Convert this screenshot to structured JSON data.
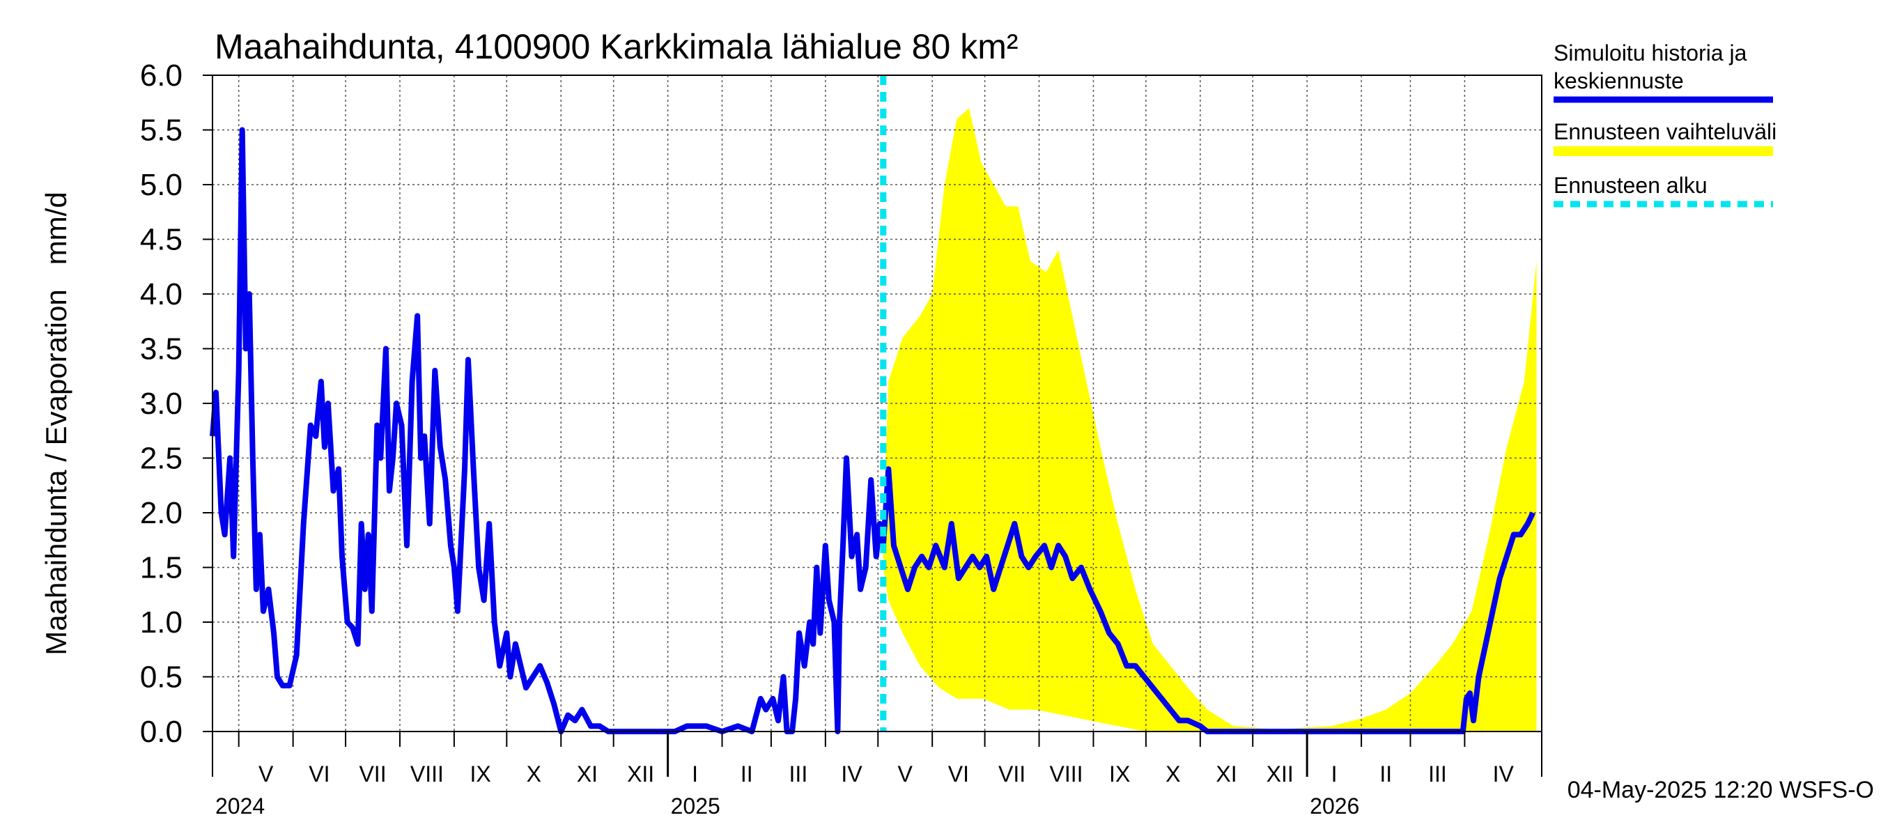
{
  "chart_data": {
    "type": "line",
    "title": "Maahaihdunta, 4100900 Karkkimala lähialue 80 km²",
    "ylabel": "Maahaihdunta / Evaporation   mm/d",
    "ylim": [
      0.0,
      6.0
    ],
    "yticks": [
      "0.0",
      "0.5",
      "1.0",
      "1.5",
      "2.0",
      "2.5",
      "3.0",
      "3.5",
      "4.0",
      "4.5",
      "5.0",
      "5.5",
      "6.0"
    ],
    "xlim": [
      "2024-04-16",
      "2026-05-15"
    ],
    "grid": true,
    "legend_position": "right",
    "month_labels": [
      {
        "label": "V",
        "start": "2024-05-01"
      },
      {
        "label": "VI",
        "start": "2024-06-01"
      },
      {
        "label": "VII",
        "start": "2024-07-01"
      },
      {
        "label": "VIII",
        "start": "2024-08-01"
      },
      {
        "label": "IX",
        "start": "2024-09-01"
      },
      {
        "label": "X",
        "start": "2024-10-01"
      },
      {
        "label": "XI",
        "start": "2024-11-01"
      },
      {
        "label": "XII",
        "start": "2024-12-01"
      },
      {
        "label": "I",
        "start": "2025-01-01"
      },
      {
        "label": "II",
        "start": "2025-02-01"
      },
      {
        "label": "III",
        "start": "2025-03-01"
      },
      {
        "label": "IV",
        "start": "2025-04-01"
      },
      {
        "label": "V",
        "start": "2025-05-01"
      },
      {
        "label": "VI",
        "start": "2025-06-01"
      },
      {
        "label": "VII",
        "start": "2025-07-01"
      },
      {
        "label": "VIII",
        "start": "2025-08-01"
      },
      {
        "label": "IX",
        "start": "2025-09-01"
      },
      {
        "label": "X",
        "start": "2025-10-01"
      },
      {
        "label": "XI",
        "start": "2025-11-01"
      },
      {
        "label": "XII",
        "start": "2025-12-01"
      },
      {
        "label": "I",
        "start": "2026-01-01"
      },
      {
        "label": "II",
        "start": "2026-02-01"
      },
      {
        "label": "III",
        "start": "2026-03-01"
      },
      {
        "label": "IV",
        "start": "2026-04-01"
      }
    ],
    "year_labels": [
      {
        "label": "2024",
        "date": "2024-05-01"
      },
      {
        "label": "2025",
        "date": "2025-01-01"
      },
      {
        "label": "2026",
        "date": "2026-01-01"
      }
    ],
    "forecast_start": "2025-05-04",
    "series": [
      {
        "name": "Simuloitu historia ja keskiennuste",
        "color": "#0000ee",
        "points": [
          [
            "2024-04-16",
            2.7
          ],
          [
            "2024-04-18",
            3.1
          ],
          [
            "2024-04-21",
            2.0
          ],
          [
            "2024-04-23",
            1.8
          ],
          [
            "2024-04-26",
            2.5
          ],
          [
            "2024-04-28",
            1.6
          ],
          [
            "2024-05-01",
            3.3
          ],
          [
            "2024-05-03",
            5.5
          ],
          [
            "2024-05-05",
            3.5
          ],
          [
            "2024-05-07",
            4.0
          ],
          [
            "2024-05-09",
            2.5
          ],
          [
            "2024-05-11",
            1.3
          ],
          [
            "2024-05-13",
            1.8
          ],
          [
            "2024-05-15",
            1.1
          ],
          [
            "2024-05-18",
            1.3
          ],
          [
            "2024-05-21",
            0.9
          ],
          [
            "2024-05-23",
            0.5
          ],
          [
            "2024-05-26",
            0.42
          ],
          [
            "2024-05-30",
            0.42
          ],
          [
            "2024-06-03",
            0.7
          ],
          [
            "2024-06-07",
            1.9
          ],
          [
            "2024-06-11",
            2.8
          ],
          [
            "2024-06-14",
            2.7
          ],
          [
            "2024-06-17",
            3.2
          ],
          [
            "2024-06-19",
            2.6
          ],
          [
            "2024-06-21",
            3.0
          ],
          [
            "2024-06-24",
            2.2
          ],
          [
            "2024-06-27",
            2.4
          ],
          [
            "2024-06-29",
            1.6
          ],
          [
            "2024-07-02",
            1.0
          ],
          [
            "2024-07-05",
            0.95
          ],
          [
            "2024-07-08",
            0.8
          ],
          [
            "2024-07-10",
            1.9
          ],
          [
            "2024-07-12",
            1.3
          ],
          [
            "2024-07-14",
            1.8
          ],
          [
            "2024-07-16",
            1.1
          ],
          [
            "2024-07-19",
            2.8
          ],
          [
            "2024-07-21",
            2.5
          ],
          [
            "2024-07-24",
            3.5
          ],
          [
            "2024-07-26",
            2.2
          ],
          [
            "2024-07-28",
            2.5
          ],
          [
            "2024-07-30",
            3.0
          ],
          [
            "2024-08-02",
            2.8
          ],
          [
            "2024-08-05",
            1.7
          ],
          [
            "2024-08-08",
            3.2
          ],
          [
            "2024-08-11",
            3.8
          ],
          [
            "2024-08-13",
            2.5
          ],
          [
            "2024-08-15",
            2.7
          ],
          [
            "2024-08-18",
            1.9
          ],
          [
            "2024-08-21",
            3.3
          ],
          [
            "2024-08-24",
            2.6
          ],
          [
            "2024-08-27",
            2.3
          ],
          [
            "2024-08-30",
            1.7
          ],
          [
            "2024-09-01",
            1.5
          ],
          [
            "2024-09-03",
            1.1
          ],
          [
            "2024-09-07",
            2.4
          ],
          [
            "2024-09-09",
            3.4
          ],
          [
            "2024-09-12",
            2.4
          ],
          [
            "2024-09-15",
            1.5
          ],
          [
            "2024-09-18",
            1.2
          ],
          [
            "2024-09-21",
            1.9
          ],
          [
            "2024-09-24",
            1.0
          ],
          [
            "2024-09-27",
            0.6
          ],
          [
            "2024-10-01",
            0.9
          ],
          [
            "2024-10-03",
            0.5
          ],
          [
            "2024-10-06",
            0.8
          ],
          [
            "2024-10-09",
            0.6
          ],
          [
            "2024-10-12",
            0.4
          ],
          [
            "2024-10-16",
            0.5
          ],
          [
            "2024-10-20",
            0.6
          ],
          [
            "2024-10-24",
            0.45
          ],
          [
            "2024-10-28",
            0.25
          ],
          [
            "2024-11-01",
            0.0
          ],
          [
            "2024-11-05",
            0.15
          ],
          [
            "2024-11-09",
            0.1
          ],
          [
            "2024-11-13",
            0.2
          ],
          [
            "2024-11-18",
            0.05
          ],
          [
            "2024-11-23",
            0.05
          ],
          [
            "2024-11-28",
            0.0
          ],
          [
            "2024-12-10",
            0.0
          ],
          [
            "2024-12-20",
            0.0
          ],
          [
            "2025-01-05",
            0.0
          ],
          [
            "2025-01-12",
            0.05
          ],
          [
            "2025-01-18",
            0.05
          ],
          [
            "2025-01-23",
            0.05
          ],
          [
            "2025-02-01",
            0.0
          ],
          [
            "2025-02-10",
            0.05
          ],
          [
            "2025-02-18",
            0.0
          ],
          [
            "2025-02-23",
            0.3
          ],
          [
            "2025-02-26",
            0.2
          ],
          [
            "2025-03-02",
            0.3
          ],
          [
            "2025-03-05",
            0.1
          ],
          [
            "2025-03-08",
            0.5
          ],
          [
            "2025-03-10",
            0.0
          ],
          [
            "2025-03-13",
            0.0
          ],
          [
            "2025-03-15",
            0.3
          ],
          [
            "2025-03-17",
            0.9
          ],
          [
            "2025-03-20",
            0.6
          ],
          [
            "2025-03-23",
            1.0
          ],
          [
            "2025-03-25",
            0.8
          ],
          [
            "2025-03-27",
            1.5
          ],
          [
            "2025-03-29",
            0.9
          ],
          [
            "2025-04-01",
            1.7
          ],
          [
            "2025-04-03",
            1.2
          ],
          [
            "2025-04-06",
            1.0
          ],
          [
            "2025-04-08",
            0.0
          ],
          [
            "2025-04-09",
            1.0
          ],
          [
            "2025-04-11",
            1.7
          ],
          [
            "2025-04-13",
            2.5
          ],
          [
            "2025-04-16",
            1.6
          ],
          [
            "2025-04-19",
            1.8
          ],
          [
            "2025-04-21",
            1.3
          ],
          [
            "2025-04-24",
            1.5
          ],
          [
            "2025-04-27",
            2.3
          ],
          [
            "2025-04-30",
            1.6
          ],
          [
            "2025-05-02",
            1.9
          ],
          [
            "2025-05-04",
            1.7
          ],
          [
            "2025-05-07",
            2.4
          ],
          [
            "2025-05-10",
            1.7
          ],
          [
            "2025-05-14",
            1.5
          ],
          [
            "2025-05-18",
            1.3
          ],
          [
            "2025-05-22",
            1.5
          ],
          [
            "2025-05-26",
            1.6
          ],
          [
            "2025-05-30",
            1.5
          ],
          [
            "2025-06-03",
            1.7
          ],
          [
            "2025-06-08",
            1.5
          ],
          [
            "2025-06-12",
            1.9
          ],
          [
            "2025-06-16",
            1.4
          ],
          [
            "2025-06-20",
            1.5
          ],
          [
            "2025-06-24",
            1.6
          ],
          [
            "2025-06-28",
            1.5
          ],
          [
            "2025-07-02",
            1.6
          ],
          [
            "2025-07-06",
            1.3
          ],
          [
            "2025-07-10",
            1.5
          ],
          [
            "2025-07-14",
            1.7
          ],
          [
            "2025-07-18",
            1.9
          ],
          [
            "2025-07-22",
            1.6
          ],
          [
            "2025-07-26",
            1.5
          ],
          [
            "2025-07-30",
            1.6
          ],
          [
            "2025-08-04",
            1.7
          ],
          [
            "2025-08-08",
            1.5
          ],
          [
            "2025-08-12",
            1.7
          ],
          [
            "2025-08-16",
            1.6
          ],
          [
            "2025-08-20",
            1.4
          ],
          [
            "2025-08-25",
            1.5
          ],
          [
            "2025-08-30",
            1.3
          ],
          [
            "2025-09-05",
            1.1
          ],
          [
            "2025-09-10",
            0.9
          ],
          [
            "2025-09-15",
            0.8
          ],
          [
            "2025-09-20",
            0.6
          ],
          [
            "2025-09-25",
            0.6
          ],
          [
            "2025-09-30",
            0.5
          ],
          [
            "2025-10-05",
            0.4
          ],
          [
            "2025-10-10",
            0.3
          ],
          [
            "2025-10-15",
            0.2
          ],
          [
            "2025-10-20",
            0.1
          ],
          [
            "2025-10-25",
            0.1
          ],
          [
            "2025-11-01",
            0.05
          ],
          [
            "2025-11-05",
            0.0
          ],
          [
            "2025-12-01",
            0.0
          ],
          [
            "2026-01-01",
            0.0
          ],
          [
            "2026-02-01",
            0.0
          ],
          [
            "2026-03-01",
            0.0
          ],
          [
            "2026-03-31",
            0.0
          ],
          [
            "2026-04-02",
            0.3
          ],
          [
            "2026-04-04",
            0.35
          ],
          [
            "2026-04-06",
            0.1
          ],
          [
            "2026-04-09",
            0.5
          ],
          [
            "2026-04-13",
            0.8
          ],
          [
            "2026-04-17",
            1.1
          ],
          [
            "2026-04-21",
            1.4
          ],
          [
            "2026-04-25",
            1.6
          ],
          [
            "2026-04-29",
            1.8
          ],
          [
            "2026-05-03",
            1.8
          ],
          [
            "2026-05-07",
            1.9
          ],
          [
            "2026-05-10",
            2.0
          ]
        ]
      }
    ],
    "band": {
      "name": "Ennusteen vaihteluväli",
      "color": "#ffff00",
      "upper": [
        [
          "2025-05-04",
          1.8
        ],
        [
          "2025-05-07",
          3.2
        ],
        [
          "2025-05-15",
          3.6
        ],
        [
          "2025-05-25",
          3.8
        ],
        [
          "2025-06-01",
          4.0
        ],
        [
          "2025-06-08",
          5.0
        ],
        [
          "2025-06-15",
          5.6
        ],
        [
          "2025-06-22",
          5.7
        ],
        [
          "2025-06-29",
          5.2
        ],
        [
          "2025-07-06",
          5.0
        ],
        [
          "2025-07-13",
          4.8
        ],
        [
          "2025-07-20",
          4.8
        ],
        [
          "2025-07-27",
          4.3
        ],
        [
          "2025-08-05",
          4.2
        ],
        [
          "2025-08-12",
          4.4
        ],
        [
          "2025-08-20",
          3.8
        ],
        [
          "2025-08-28",
          3.2
        ],
        [
          "2025-09-05",
          2.6
        ],
        [
          "2025-09-15",
          1.9
        ],
        [
          "2025-09-25",
          1.3
        ],
        [
          "2025-10-05",
          0.8
        ],
        [
          "2025-10-15",
          0.6
        ],
        [
          "2025-10-25",
          0.4
        ],
        [
          "2025-11-05",
          0.2
        ],
        [
          "2025-11-20",
          0.05
        ],
        [
          "2025-12-15",
          0.02
        ],
        [
          "2026-01-15",
          0.05
        ],
        [
          "2026-02-01",
          0.12
        ],
        [
          "2026-02-15",
          0.2
        ],
        [
          "2026-03-01",
          0.35
        ],
        [
          "2026-03-15",
          0.6
        ],
        [
          "2026-03-25",
          0.8
        ],
        [
          "2026-04-05",
          1.1
        ],
        [
          "2026-04-15",
          1.8
        ],
        [
          "2026-04-25",
          2.6
        ],
        [
          "2026-05-05",
          3.2
        ],
        [
          "2026-05-12",
          4.3
        ]
      ],
      "lower": [
        [
          "2025-05-04",
          1.5
        ],
        [
          "2025-05-07",
          1.2
        ],
        [
          "2025-05-15",
          0.9
        ],
        [
          "2025-05-25",
          0.6
        ],
        [
          "2025-06-05",
          0.4
        ],
        [
          "2025-06-15",
          0.3
        ],
        [
          "2025-06-30",
          0.3
        ],
        [
          "2025-07-15",
          0.2
        ],
        [
          "2025-07-30",
          0.2
        ],
        [
          "2025-08-15",
          0.15
        ],
        [
          "2025-08-30",
          0.1
        ],
        [
          "2025-09-15",
          0.05
        ],
        [
          "2025-10-01",
          0.0
        ],
        [
          "2026-05-12",
          0.0
        ]
      ]
    }
  },
  "legend": {
    "items": [
      {
        "label_line1": "Simuloitu historia ja",
        "label_line2": "keskiennuste",
        "color": "#0000ee",
        "style": "solid"
      },
      {
        "label_line1": "Ennusteen vaihteluväli",
        "label_line2": "",
        "color": "#ffff00",
        "style": "solid"
      },
      {
        "label_line1": "Ennusteen alku",
        "label_line2": "",
        "color": "#00e5ee",
        "style": "dashed"
      }
    ]
  },
  "footer": {
    "timestamp": "04-May-2025 12:20 WSFS-O"
  }
}
